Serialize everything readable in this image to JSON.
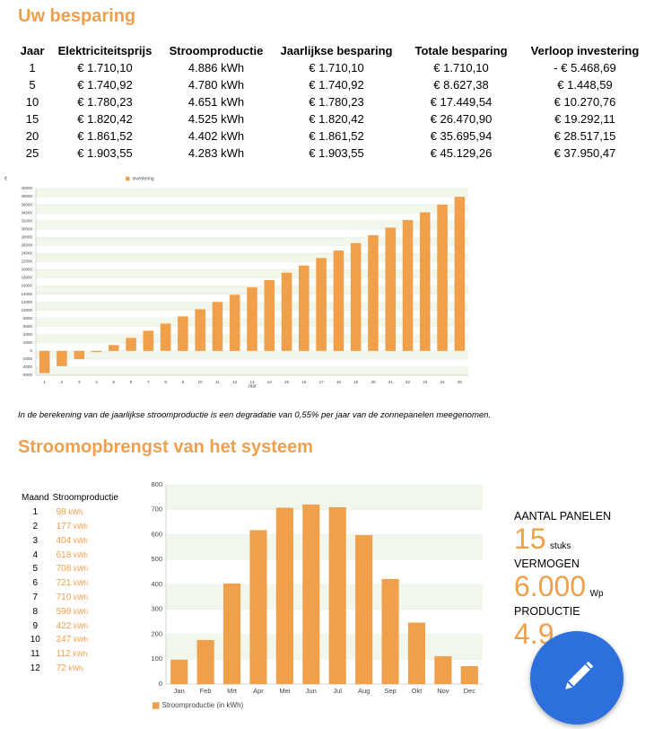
{
  "savings": {
    "title": "Uw besparing",
    "table": {
      "header": [
        "Jaar",
        "Elektriciteitsprijs",
        "Stroomproductie",
        "Jaarlijkse besparing",
        "Totale besparing",
        "Verloop investering"
      ],
      "rows": [
        [
          "1",
          "€ 1.710,10",
          "4.886 kWh",
          "€ 1.710,10",
          "€ 1.710,10",
          "- € 5.468,69"
        ],
        [
          "5",
          "€ 1.740,92",
          "4.780 kWh",
          "€ 1.740,92",
          "€ 8.627,38",
          "€ 1.448,59"
        ],
        [
          "10",
          "€ 1.780,23",
          "4.651 kWh",
          "€ 1.780,23",
          "€ 17.449,54",
          "€ 10.270,76"
        ],
        [
          "15",
          "€ 1.820,42",
          "4.525 kWh",
          "€ 1.820,42",
          "€ 26.470,90",
          "€ 19.292,11"
        ],
        [
          "20",
          "€ 1.861,52",
          "4.402 kWh",
          "€ 1.861,52",
          "€ 35.695,94",
          "€ 28.517,15"
        ],
        [
          "25",
          "€ 1.903,55",
          "4.283 kWh",
          "€ 1.903,55",
          "€ 45.129,26",
          "€ 37.950,47"
        ]
      ]
    }
  },
  "chart_data": [
    {
      "type": "bar",
      "y_label": "€",
      "x_label": "Jaar",
      "categories": [
        "1",
        "2",
        "3",
        "4",
        "5",
        "6",
        "7",
        "8",
        "9",
        "10",
        "11",
        "12",
        "13",
        "14",
        "15",
        "16",
        "17",
        "18",
        "19",
        "20",
        "21",
        "22",
        "23",
        "24",
        "25"
      ],
      "series": [
        {
          "name": "investering",
          "color": "#f0a04b",
          "values": [
            -5468.69,
            -3752,
            -2028,
            -296,
            1448.59,
            3200,
            4959,
            6724,
            8495,
            10270.76,
            12052,
            13838,
            15631,
            17430,
            19292.11,
            21044,
            22884,
            24730,
            26583,
            28517.15,
            30366,
            32249,
            34138,
            36035,
            37950.47
          ]
        }
      ],
      "ylim": [
        -6000,
        40000
      ],
      "yticks": [
        40000,
        38000,
        36000,
        34000,
        32000,
        30000,
        28000,
        26000,
        24000,
        22000,
        20000,
        18000,
        16000,
        14000,
        12000,
        10000,
        8000,
        6000,
        4000,
        2000,
        0,
        -2000,
        -4000,
        -6000
      ],
      "grid": true
    },
    {
      "type": "bar",
      "categories": [
        "Jan",
        "Feb",
        "Mrt",
        "Apr",
        "Mei",
        "Jun",
        "Jul",
        "Aug",
        "Sep",
        "Okt",
        "Nov",
        "Dec"
      ],
      "series": [
        {
          "name": "Stroomproductie (in kWh)",
          "color": "#f0a04b",
          "values": [
            98,
            177,
            404,
            618,
            708,
            721,
            710,
            598,
            422,
            247,
            112,
            72
          ]
        }
      ],
      "ylim": [
        0,
        800
      ],
      "yticks": [
        800,
        700,
        600,
        500,
        400,
        300,
        200,
        100,
        0
      ],
      "grid": true
    }
  ],
  "note": "In de berekening van de jaarlijkse stroomproductie is een degradatie van 0,55% per jaar van de zonnepanelen meegenomen.",
  "yield": {
    "title": "Stroomopbrengst van het systeem",
    "table": {
      "header": [
        "Maand",
        "Stroomproductie"
      ],
      "rows": [
        [
          "1",
          "98",
          "kWh"
        ],
        [
          "2",
          "177",
          "kWh"
        ],
        [
          "3",
          "404",
          "kWh"
        ],
        [
          "4",
          "618",
          "kWh"
        ],
        [
          "5",
          "708",
          "kWh"
        ],
        [
          "6",
          "721",
          "kWh"
        ],
        [
          "7",
          "710",
          "kWh"
        ],
        [
          "8",
          "598",
          "kWh"
        ],
        [
          "9",
          "422",
          "kWh"
        ],
        [
          "10",
          "247",
          "kWh"
        ],
        [
          "11",
          "112",
          "kWh"
        ],
        [
          "12",
          "72",
          "kWh"
        ]
      ]
    }
  },
  "stats": {
    "panels": {
      "label": "AANTAL PANELEN",
      "value": "15",
      "unit": "stuks"
    },
    "power": {
      "label": "VERMOGEN",
      "value": "6.000",
      "unit": "Wp"
    },
    "production": {
      "label": "PRODUCTIE",
      "value": "4.9"
    }
  }
}
